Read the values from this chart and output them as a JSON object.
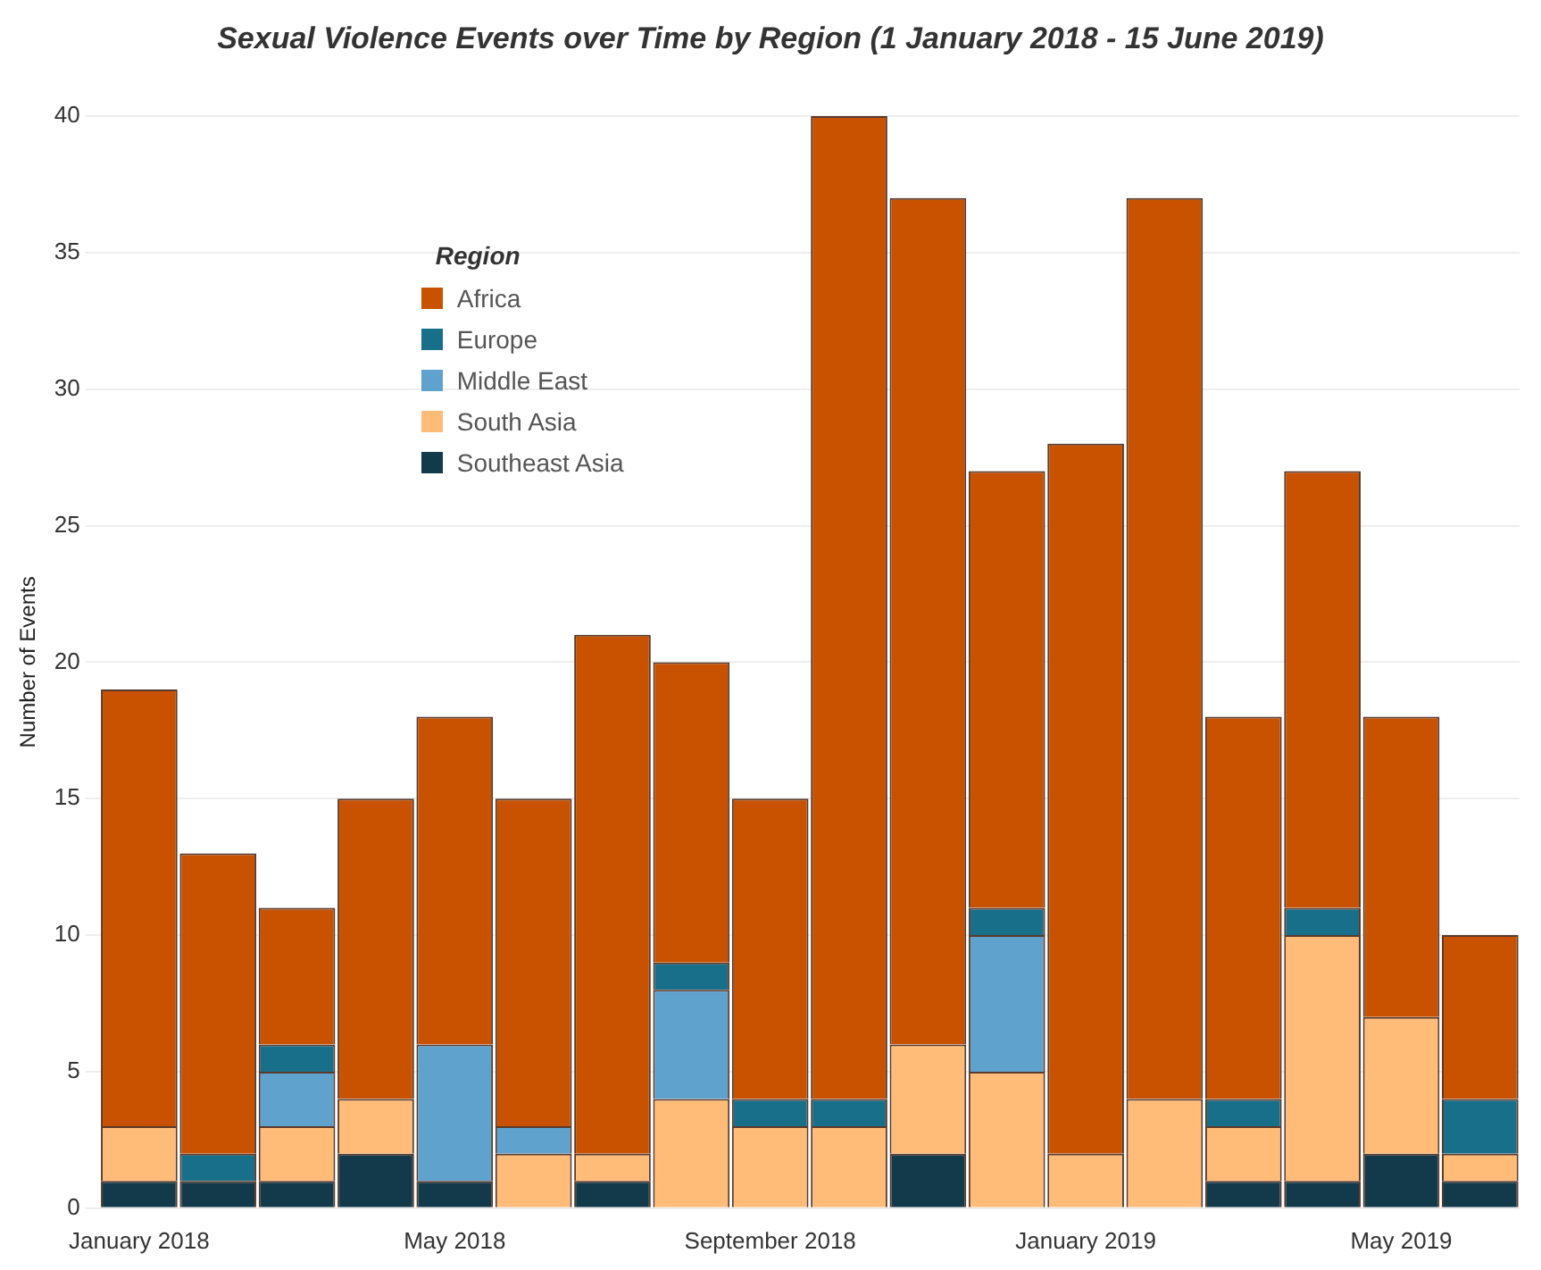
{
  "chart_data": {
    "type": "bar",
    "title": "Sexual Violence Events over Time by Region (1 January 2018 - 15 June 2019)",
    "ylabel": "Number of Events",
    "legend_title": "Region",
    "legend": "top left",
    "grid": "y",
    "stacked": true,
    "categories": [
      "January 2018",
      null,
      null,
      null,
      "May 2018",
      null,
      null,
      null,
      "September 2018",
      null,
      null,
      null,
      "January 2019",
      null,
      null,
      null,
      "May 2019",
      null
    ],
    "ylim": [
      0,
      40
    ],
    "yticks": [
      0,
      5,
      10,
      15,
      20,
      25,
      30,
      35,
      40
    ],
    "series": [
      {
        "name": "Southeast Asia",
        "color": "#123a4a",
        "values": [
          1,
          1,
          1,
          2,
          1,
          0,
          1,
          0,
          0,
          0,
          2,
          0,
          0,
          0,
          1,
          1,
          2,
          1
        ]
      },
      {
        "name": "South Asia",
        "color": "#ffbc79",
        "values": [
          2,
          0,
          2,
          2,
          0,
          2,
          1,
          4,
          3,
          3,
          4,
          5,
          2,
          4,
          2,
          9,
          5,
          1
        ]
      },
      {
        "name": "Middle East",
        "color": "#5fa2ce",
        "values": [
          0,
          0,
          2,
          0,
          5,
          1,
          0,
          4,
          0,
          0,
          0,
          5,
          0,
          0,
          0,
          0,
          0,
          0
        ]
      },
      {
        "name": "Europe",
        "color": "#176f8a",
        "values": [
          0,
          1,
          1,
          0,
          0,
          0,
          0,
          1,
          1,
          1,
          0,
          1,
          0,
          0,
          1,
          1,
          0,
          2
        ]
      },
      {
        "name": "Africa",
        "color": "#c85200",
        "values": [
          16,
          11,
          5,
          11,
          12,
          12,
          19,
          11,
          11,
          36,
          31,
          16,
          26,
          33,
          14,
          16,
          11,
          6
        ]
      }
    ]
  }
}
